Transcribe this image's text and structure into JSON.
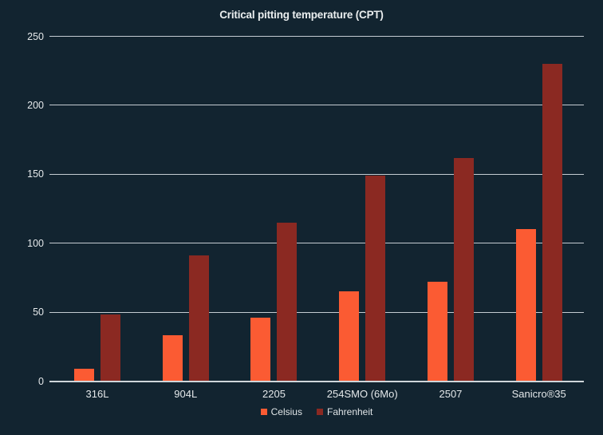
{
  "chart_data": {
    "type": "bar",
    "title": "Critical pitting temperature (CPT)",
    "categories": [
      "316L",
      "904L",
      "2205",
      "254SMO (6Mo)",
      "2507",
      "Sanicro®35"
    ],
    "series": [
      {
        "name": "Celsius",
        "color": "#fb5b33",
        "values": [
          9,
          33,
          46,
          65,
          72,
          110
        ]
      },
      {
        "name": "Fahrenheit",
        "color": "#8b2922",
        "values": [
          48.2,
          91.4,
          114.8,
          149,
          161.6,
          230
        ]
      }
    ],
    "xlabel": "",
    "ylabel": "",
    "ylim": [
      0,
      250
    ],
    "yticks": [
      0,
      50,
      100,
      150,
      200,
      250
    ],
    "grid": true,
    "legend_position": "bottom"
  },
  "colors": {
    "background": "#122430",
    "gridline": "#c4ccd2",
    "axis_line": "#cfd6da",
    "text": "#e4e8ea",
    "celsius": "#fb5b33",
    "fahrenheit": "#8b2922"
  }
}
